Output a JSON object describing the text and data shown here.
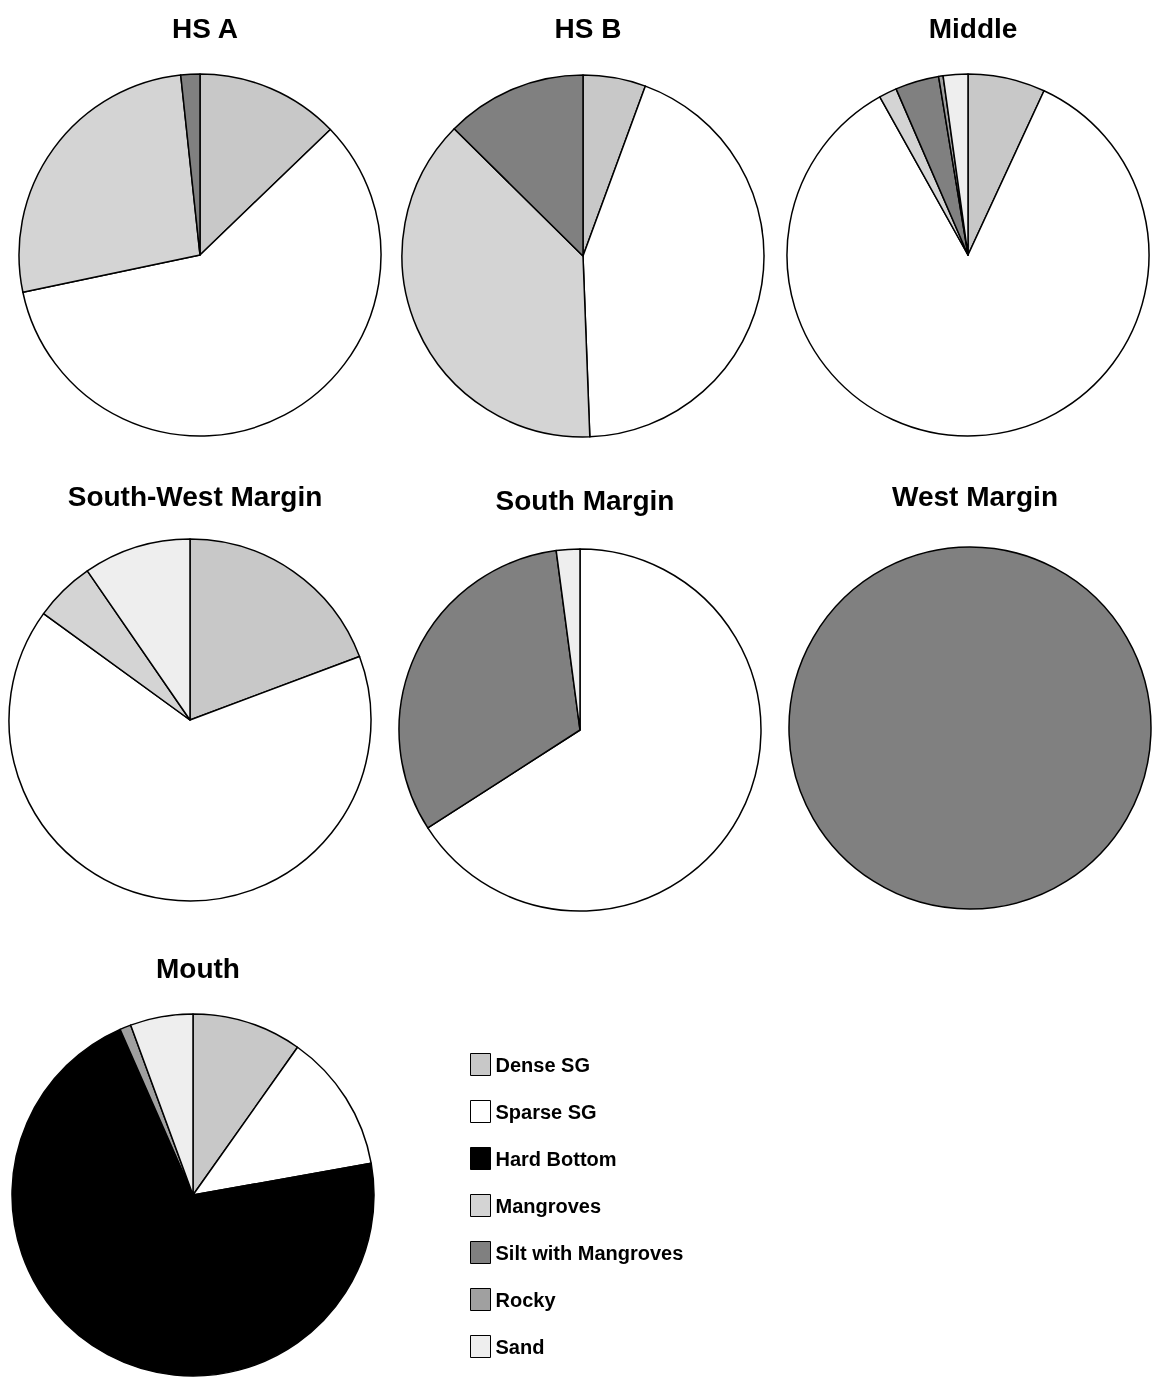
{
  "chart_data": [
    {
      "type": "pie",
      "title": "HS A",
      "categories": [
        null,
        null,
        null,
        null
      ],
      "values": [
        12.8,
        58.9,
        26.6,
        1.7
      ],
      "colors": [
        "#c8c8c8",
        "#ffffff",
        "#d4d4d4",
        "#808080"
      ]
    },
    {
      "type": "pie",
      "title": "HS B",
      "categories": [
        null,
        null,
        null,
        null
      ],
      "values": [
        5.6,
        43.8,
        38.0,
        12.6
      ],
      "colors": [
        "#c8c8c8",
        "#ffffff",
        "#d4d4d4",
        "#808080"
      ]
    },
    {
      "type": "pie",
      "title": "Middle",
      "categories": [
        null,
        null,
        null,
        null,
        null,
        null
      ],
      "values": [
        6.9,
        85.0,
        1.6,
        3.9,
        0.4,
        2.2
      ],
      "colors": [
        "#c8c8c8",
        "#ffffff",
        "#d4d4d4",
        "#808080",
        "#a0a0a0",
        "#eeeeee"
      ]
    },
    {
      "type": "pie",
      "title": "South-West Margin",
      "categories": [
        null,
        null,
        null,
        null
      ],
      "values": [
        19.3,
        65.7,
        5.4,
        9.6
      ],
      "colors": [
        "#c8c8c8",
        "#ffffff",
        "#d4d4d4",
        "#eeeeee"
      ]
    },
    {
      "type": "pie",
      "title": "South Margin",
      "categories": [
        null,
        null,
        null
      ],
      "values": [
        65.9,
        32.0,
        2.1
      ],
      "colors": [
        "#ffffff",
        "#808080",
        "#eeeeee"
      ]
    },
    {
      "type": "pie",
      "title": "West Margin",
      "categories": [
        null
      ],
      "values": [
        100
      ],
      "colors": [
        "#808080"
      ]
    },
    {
      "type": "pie",
      "title": "Mouth",
      "categories": [
        "Dense SG",
        "Sparse SG",
        "Hard Bottom",
        "Mangroves",
        "Silt with Mangroves",
        "Rocky",
        "Sand"
      ],
      "values": [
        9.8,
        12.4,
        71.2,
        0,
        0,
        1.0,
        5.6
      ],
      "colors": [
        "#c8c8c8",
        "#ffffff",
        "#000000",
        "#d4d4d4",
        "#808080",
        "#a0a0a0",
        "#eeeeee"
      ],
      "legend": "right"
    }
  ]
}
